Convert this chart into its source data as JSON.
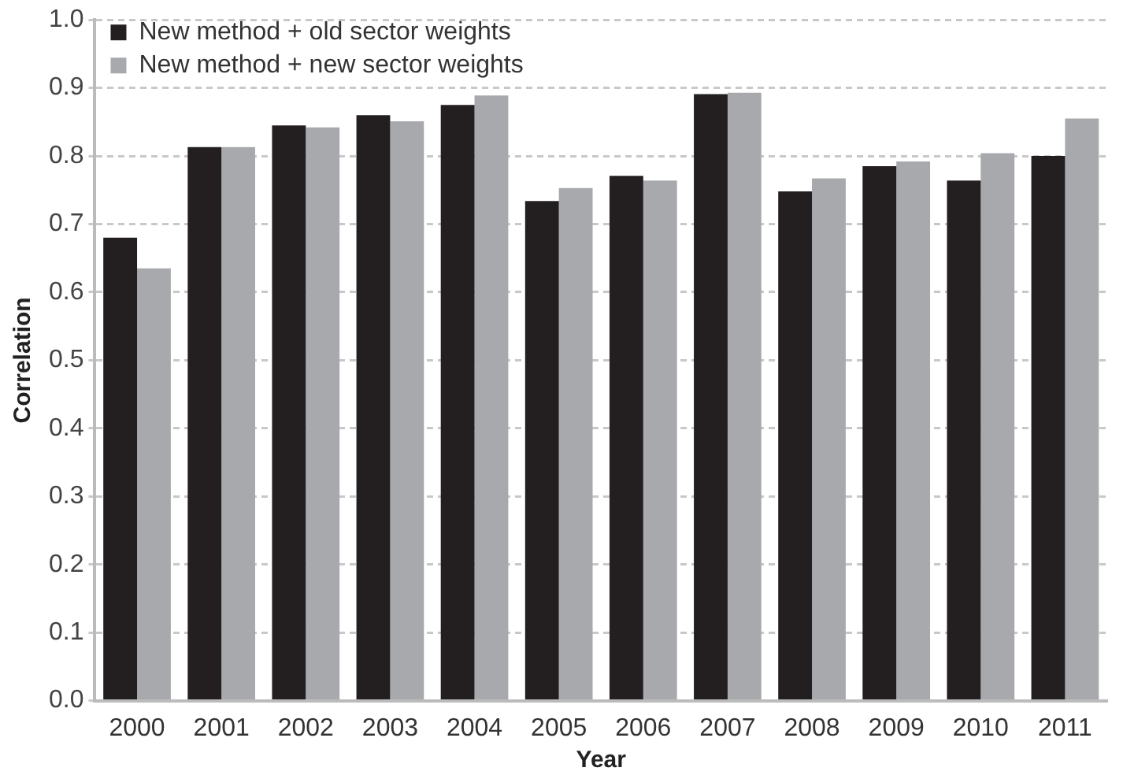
{
  "chart_data": {
    "type": "bar",
    "xlabel": "Year",
    "ylabel": "Correlation",
    "categories": [
      "2000",
      "2001",
      "2002",
      "2003",
      "2004",
      "2005",
      "2006",
      "2007",
      "2008",
      "2009",
      "2010",
      "2011"
    ],
    "series": [
      {
        "name": "New method + old sector weights",
        "color": "#231f20",
        "values": [
          0.68,
          0.813,
          0.845,
          0.86,
          0.875,
          0.734,
          0.771,
          0.891,
          0.748,
          0.785,
          0.764,
          0.8
        ]
      },
      {
        "name": "New method + new sector weights",
        "color": "#a7a9ac",
        "values": [
          0.635,
          0.813,
          0.842,
          0.851,
          0.889,
          0.753,
          0.764,
          0.893,
          0.767,
          0.792,
          0.804,
          0.855
        ]
      }
    ],
    "ylim": [
      0,
      1
    ],
    "yticks": [
      {
        "value": 0,
        "label": "0.0"
      },
      0.1,
      0.2,
      0.3,
      0.4,
      0.5,
      0.6,
      0.7,
      0.8,
      0.9,
      {
        "value": 1,
        "label": "1.0"
      }
    ],
    "grid": "y",
    "legend": "top left"
  }
}
